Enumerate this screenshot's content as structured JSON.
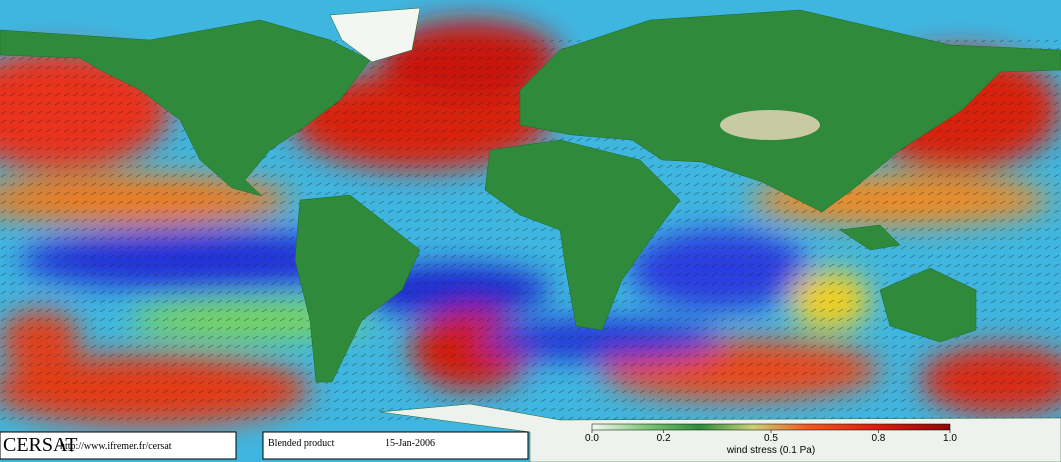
{
  "footer": {
    "logo": "CERSAT",
    "url": "http://www.ifremer.fr/cersat",
    "product": "Blended product",
    "date": "15-Jan-2006"
  },
  "colorbar": {
    "ticks": [
      {
        "value": 0,
        "label": "0.0"
      },
      {
        "value": 0.2,
        "label": "0.2"
      },
      {
        "value": 0.5,
        "label": "0.5"
      },
      {
        "value": 0.8,
        "label": "0.8"
      },
      {
        "value": 1,
        "label": "1.0"
      }
    ],
    "range": [
      0,
      1
    ],
    "label": "wind stress (0.1 Pa)"
  }
}
